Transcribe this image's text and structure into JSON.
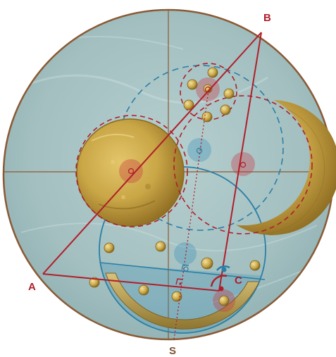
{
  "labels": {
    "a": "A",
    "b": "B",
    "c": "C",
    "s": "S"
  },
  "colors": {
    "disc_fill": "#a9c4c4",
    "disc_rim": "#8a5a34",
    "gold": "#c9a646",
    "gold_dark": "#8a6a1e",
    "red": "#b01e2a",
    "blue": "#2a7fa6",
    "label": "#b01e2a",
    "label_s": "#7a5230"
  }
}
